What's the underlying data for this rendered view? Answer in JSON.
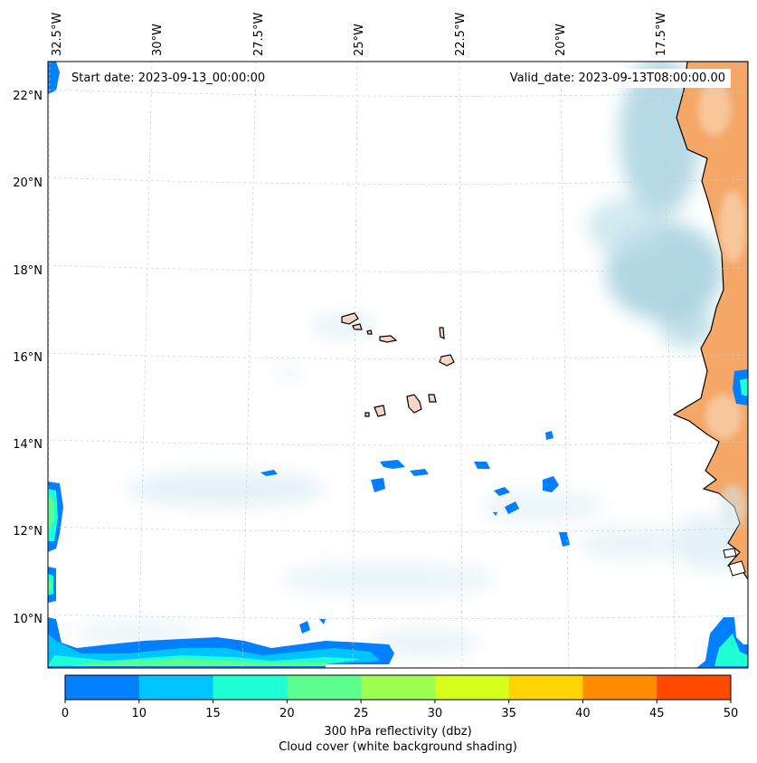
{
  "start_date_text": "Start date: 2023-09-13_00:00:00",
  "valid_date_text": "Valid_date: 2023-09-13T08:00:00.00",
  "lon_labels": [
    "32.5°W",
    "30°W",
    "27.5°W",
    "25°W",
    "22.5°W",
    "20°W",
    "17.5°W"
  ],
  "lat_labels": [
    "22°N",
    "20°N",
    "18°N",
    "16°N",
    "14°N",
    "12°N",
    "10°N"
  ],
  "colorbar": {
    "ticks": [
      "0",
      "10",
      "15",
      "20",
      "25",
      "30",
      "35",
      "40",
      "45",
      "50"
    ],
    "colors": [
      "#0080ff",
      "#00c4ff",
      "#1effd6",
      "#5cff8e",
      "#9cff50",
      "#d6ff1e",
      "#ffd400",
      "#ff8c00",
      "#ff4a00"
    ],
    "label": "300 hPa reflectivity (dbz)",
    "sublabel": "Cloud cover (white background shading)"
  },
  "colors": {
    "cloud_shade": "#a9d3e0",
    "land_shade": "#f4a766",
    "reflectivity_low": "#0080ff",
    "reflectivity_mid": "#1effd6"
  }
}
